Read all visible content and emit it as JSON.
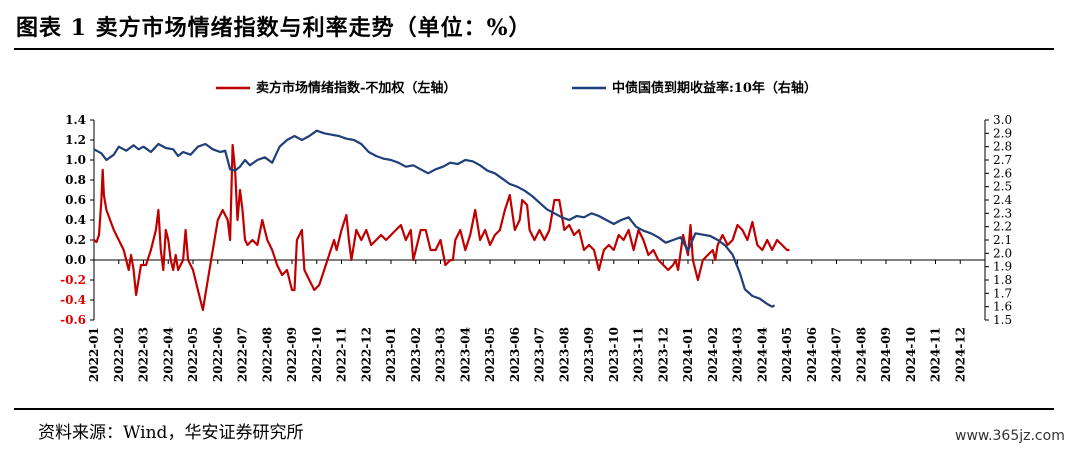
{
  "title": "图表 1 卖方市场情绪指数与利率走势（单位：%）",
  "source": "资料来源：Wind，华安证券研究所",
  "watermark": "www.365jz.com",
  "chart_data": {
    "type": "line",
    "x_labels": [
      "2022-01",
      "2022-02",
      "2022-03",
      "2022-04",
      "2022-05",
      "2022-06",
      "2022-07",
      "2022-08",
      "2022-09",
      "2022-10",
      "2022-11",
      "2022-12",
      "2023-01",
      "2023-02",
      "2023-03",
      "2023-04",
      "2023-05",
      "2023-06",
      "2023-07",
      "2023-08",
      "2023-09",
      "2023-10",
      "2023-11",
      "2023-12",
      "2024-01",
      "2024-02",
      "2024-03",
      "2024-04",
      "2024-05",
      "2024-06",
      "2024-07",
      "2024-08",
      "2024-09",
      "2024-10",
      "2024-11",
      "2024-12"
    ],
    "y_left": {
      "min": -0.6,
      "max": 1.4,
      "step": 0.2,
      "ticks": [
        "1.4",
        "1.2",
        "1.0",
        "0.8",
        "0.6",
        "0.4",
        "0.2",
        "0.0",
        "-0.2",
        "-0.4",
        "-0.6"
      ]
    },
    "y_right": {
      "min": 1.5,
      "max": 3.0,
      "step": 0.1,
      "ticks": [
        "3.0",
        "2.9",
        "2.8",
        "2.7",
        "2.6",
        "2.5",
        "2.4",
        "2.3",
        "2.2",
        "2.1",
        "2.0",
        "1.9",
        "1.8",
        "1.7",
        "1.6",
        "1.5"
      ]
    },
    "negative_tick_color": "#e00000",
    "legend_placement": "top",
    "series": [
      {
        "name": "卖方市场情绪指数-不加权（左轴）",
        "axis": "left",
        "color": "#c00000",
        "points": [
          [
            0,
            0.2
          ],
          [
            0.1,
            0.18
          ],
          [
            0.2,
            0.25
          ],
          [
            0.3,
            0.6
          ],
          [
            0.35,
            0.9
          ],
          [
            0.4,
            0.65
          ],
          [
            0.5,
            0.5
          ],
          [
            0.8,
            0.3
          ],
          [
            1.2,
            0.1
          ],
          [
            1.4,
            -0.1
          ],
          [
            1.5,
            0.05
          ],
          [
            1.6,
            -0.1
          ],
          [
            1.7,
            -0.35
          ],
          [
            1.9,
            -0.05
          ],
          [
            2.1,
            -0.05
          ],
          [
            2.3,
            0.1
          ],
          [
            2.5,
            0.3
          ],
          [
            2.6,
            0.5
          ],
          [
            2.7,
            0.1
          ],
          [
            2.8,
            -0.1
          ],
          [
            2.9,
            0.3
          ],
          [
            3.0,
            0.2
          ],
          [
            3.1,
            0.0
          ],
          [
            3.2,
            -0.1
          ],
          [
            3.3,
            0.05
          ],
          [
            3.4,
            -0.1
          ],
          [
            3.6,
            0.0
          ],
          [
            3.7,
            0.3
          ],
          [
            3.8,
            0.0
          ],
          [
            4.0,
            -0.1
          ],
          [
            4.2,
            -0.3
          ],
          [
            4.4,
            -0.5
          ],
          [
            4.6,
            -0.2
          ],
          [
            4.8,
            0.1
          ],
          [
            5.0,
            0.4
          ],
          [
            5.2,
            0.5
          ],
          [
            5.4,
            0.4
          ],
          [
            5.5,
            0.2
          ],
          [
            5.6,
            1.15
          ],
          [
            5.7,
            0.9
          ],
          [
            5.8,
            0.4
          ],
          [
            5.9,
            0.7
          ],
          [
            6.0,
            0.5
          ],
          [
            6.1,
            0.2
          ],
          [
            6.2,
            0.15
          ],
          [
            6.4,
            0.2
          ],
          [
            6.6,
            0.15
          ],
          [
            6.8,
            0.4
          ],
          [
            7.0,
            0.2
          ],
          [
            7.2,
            0.1
          ],
          [
            7.4,
            -0.05
          ],
          [
            7.6,
            -0.15
          ],
          [
            7.8,
            -0.1
          ],
          [
            8.0,
            -0.3
          ],
          [
            8.1,
            -0.3
          ],
          [
            8.2,
            0.2
          ],
          [
            8.4,
            0.3
          ],
          [
            8.5,
            -0.1
          ],
          [
            8.7,
            -0.2
          ],
          [
            8.9,
            -0.3
          ],
          [
            9.1,
            -0.25
          ],
          [
            9.3,
            -0.1
          ],
          [
            9.5,
            0.05
          ],
          [
            9.7,
            0.2
          ],
          [
            9.8,
            0.1
          ],
          [
            10.0,
            0.3
          ],
          [
            10.2,
            0.45
          ],
          [
            10.3,
            0.2
          ],
          [
            10.4,
            0.0
          ],
          [
            10.6,
            0.3
          ],
          [
            10.8,
            0.2
          ],
          [
            11.0,
            0.3
          ],
          [
            11.2,
            0.15
          ],
          [
            11.4,
            0.2
          ],
          [
            11.6,
            0.25
          ],
          [
            11.8,
            0.2
          ],
          [
            12.0,
            0.25
          ],
          [
            12.2,
            0.3
          ],
          [
            12.4,
            0.35
          ],
          [
            12.6,
            0.2
          ],
          [
            12.8,
            0.3
          ],
          [
            12.9,
            0.0
          ],
          [
            13.0,
            0.1
          ],
          [
            13.2,
            0.3
          ],
          [
            13.4,
            0.3
          ],
          [
            13.6,
            0.1
          ],
          [
            13.8,
            0.1
          ],
          [
            14.0,
            0.2
          ],
          [
            14.2,
            -0.05
          ],
          [
            14.4,
            0.0
          ],
          [
            14.5,
            0.0
          ],
          [
            14.6,
            0.2
          ],
          [
            14.8,
            0.3
          ],
          [
            15.0,
            0.1
          ],
          [
            15.2,
            0.25
          ],
          [
            15.4,
            0.5
          ],
          [
            15.6,
            0.2
          ],
          [
            15.8,
            0.3
          ],
          [
            16.0,
            0.15
          ],
          [
            16.2,
            0.25
          ],
          [
            16.4,
            0.3
          ],
          [
            16.6,
            0.5
          ],
          [
            16.8,
            0.65
          ],
          [
            17.0,
            0.3
          ],
          [
            17.2,
            0.4
          ],
          [
            17.3,
            0.6
          ],
          [
            17.5,
            0.55
          ],
          [
            17.6,
            0.3
          ],
          [
            17.8,
            0.2
          ],
          [
            18.0,
            0.3
          ],
          [
            18.2,
            0.2
          ],
          [
            18.4,
            0.3
          ],
          [
            18.6,
            0.6
          ],
          [
            18.8,
            0.6
          ],
          [
            19.0,
            0.3
          ],
          [
            19.2,
            0.35
          ],
          [
            19.4,
            0.25
          ],
          [
            19.6,
            0.3
          ],
          [
            19.8,
            0.1
          ],
          [
            20.0,
            0.15
          ],
          [
            20.2,
            0.1
          ],
          [
            20.4,
            -0.1
          ],
          [
            20.6,
            0.1
          ],
          [
            20.8,
            0.15
          ],
          [
            21.0,
            0.1
          ],
          [
            21.2,
            0.25
          ],
          [
            21.4,
            0.2
          ],
          [
            21.6,
            0.3
          ],
          [
            21.8,
            0.1
          ],
          [
            22.0,
            0.3
          ],
          [
            22.2,
            0.2
          ],
          [
            22.4,
            0.05
          ],
          [
            22.6,
            0.1
          ],
          [
            22.8,
            0.0
          ],
          [
            23.0,
            -0.05
          ],
          [
            23.2,
            -0.1
          ],
          [
            23.4,
            -0.05
          ],
          [
            23.5,
            0.0
          ],
          [
            23.6,
            -0.1
          ],
          [
            23.8,
            0.25
          ],
          [
            23.9,
            0.15
          ],
          [
            24.0,
            0.05
          ],
          [
            24.1,
            0.35
          ],
          [
            24.2,
            0.0
          ],
          [
            24.4,
            -0.2
          ],
          [
            24.6,
            0.0
          ],
          [
            24.8,
            0.05
          ],
          [
            25.0,
            0.1
          ],
          [
            25.1,
            0.0
          ],
          [
            25.2,
            0.15
          ],
          [
            25.4,
            0.25
          ],
          [
            25.6,
            0.15
          ],
          [
            25.8,
            0.2
          ],
          [
            26.0,
            0.35
          ],
          [
            26.2,
            0.3
          ],
          [
            26.4,
            0.2
          ],
          [
            26.6,
            0.38
          ],
          [
            26.8,
            0.15
          ],
          [
            27.0,
            0.1
          ],
          [
            27.2,
            0.2
          ],
          [
            27.4,
            0.1
          ],
          [
            27.6,
            0.2
          ],
          [
            28.0,
            0.1
          ],
          [
            28.1,
            0.1
          ]
        ]
      },
      {
        "name": "中债国债到期收益率:10年（右轴）",
        "axis": "right",
        "color": "#1f3f7a",
        "points": [
          [
            0,
            2.78
          ],
          [
            0.3,
            2.75
          ],
          [
            0.5,
            2.7
          ],
          [
            0.8,
            2.74
          ],
          [
            1.0,
            2.8
          ],
          [
            1.3,
            2.77
          ],
          [
            1.6,
            2.81
          ],
          [
            1.8,
            2.78
          ],
          [
            2.0,
            2.8
          ],
          [
            2.3,
            2.76
          ],
          [
            2.6,
            2.82
          ],
          [
            2.9,
            2.79
          ],
          [
            3.2,
            2.78
          ],
          [
            3.4,
            2.73
          ],
          [
            3.6,
            2.76
          ],
          [
            3.9,
            2.74
          ],
          [
            4.2,
            2.8
          ],
          [
            4.5,
            2.82
          ],
          [
            4.8,
            2.78
          ],
          [
            5.1,
            2.76
          ],
          [
            5.3,
            2.77
          ],
          [
            5.5,
            2.63
          ],
          [
            5.7,
            2.62
          ],
          [
            5.9,
            2.65
          ],
          [
            6.1,
            2.7
          ],
          [
            6.3,
            2.66
          ],
          [
            6.6,
            2.7
          ],
          [
            6.9,
            2.72
          ],
          [
            7.2,
            2.68
          ],
          [
            7.5,
            2.8
          ],
          [
            7.8,
            2.85
          ],
          [
            8.1,
            2.88
          ],
          [
            8.4,
            2.85
          ],
          [
            8.7,
            2.88
          ],
          [
            9.0,
            2.92
          ],
          [
            9.3,
            2.9
          ],
          [
            9.6,
            2.89
          ],
          [
            9.9,
            2.88
          ],
          [
            10.2,
            2.86
          ],
          [
            10.5,
            2.85
          ],
          [
            10.8,
            2.82
          ],
          [
            11.1,
            2.76
          ],
          [
            11.4,
            2.73
          ],
          [
            11.7,
            2.71
          ],
          [
            12.0,
            2.7
          ],
          [
            12.3,
            2.68
          ],
          [
            12.6,
            2.65
          ],
          [
            12.9,
            2.66
          ],
          [
            13.2,
            2.63
          ],
          [
            13.5,
            2.6
          ],
          [
            13.8,
            2.63
          ],
          [
            14.1,
            2.65
          ],
          [
            14.4,
            2.68
          ],
          [
            14.7,
            2.67
          ],
          [
            15.0,
            2.7
          ],
          [
            15.3,
            2.69
          ],
          [
            15.6,
            2.66
          ],
          [
            15.9,
            2.62
          ],
          [
            16.2,
            2.6
          ],
          [
            16.5,
            2.56
          ],
          [
            16.8,
            2.52
          ],
          [
            17.1,
            2.5
          ],
          [
            17.4,
            2.47
          ],
          [
            17.7,
            2.43
          ],
          [
            18.0,
            2.38
          ],
          [
            18.3,
            2.33
          ],
          [
            18.6,
            2.3
          ],
          [
            18.9,
            2.27
          ],
          [
            19.2,
            2.25
          ],
          [
            19.5,
            2.28
          ],
          [
            19.8,
            2.27
          ],
          [
            20.1,
            2.3
          ],
          [
            20.4,
            2.28
          ],
          [
            20.7,
            2.25
          ],
          [
            21.0,
            2.22
          ],
          [
            21.3,
            2.25
          ],
          [
            21.6,
            2.27
          ],
          [
            21.9,
            2.2
          ],
          [
            22.2,
            2.17
          ],
          [
            22.5,
            2.15
          ],
          [
            22.8,
            2.12
          ],
          [
            23.1,
            2.08
          ],
          [
            23.4,
            2.1
          ],
          [
            23.7,
            2.12
          ],
          [
            24.0,
            2.02
          ],
          [
            24.3,
            2.15
          ],
          [
            24.6,
            2.14
          ],
          [
            24.9,
            2.13
          ],
          [
            25.2,
            2.1
          ],
          [
            25.5,
            2.06
          ],
          [
            25.8,
            1.99
          ],
          [
            26.1,
            1.85
          ],
          [
            26.3,
            1.73
          ],
          [
            26.6,
            1.68
          ],
          [
            26.9,
            1.66
          ],
          [
            27.2,
            1.62
          ],
          [
            27.4,
            1.6
          ],
          [
            27.5,
            1.61
          ]
        ]
      }
    ]
  }
}
